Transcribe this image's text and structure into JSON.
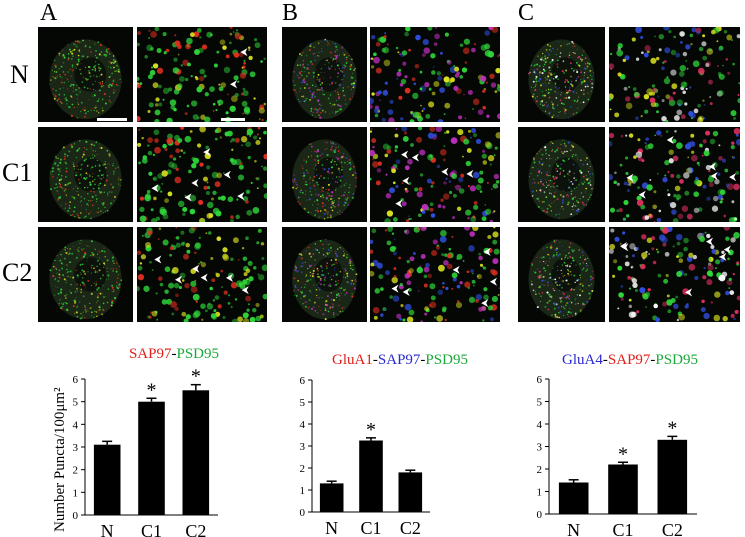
{
  "figure": {
    "panel_letters": [
      "A",
      "B",
      "C"
    ],
    "row_labels": [
      "N",
      "C1",
      "C2"
    ],
    "channel_colors": {
      "SAP97": "#e0201a",
      "PSD95": "#1aa83a",
      "GluA1": "#e0201a",
      "GluA4": "#2a2ad0",
      "dash": "#000000"
    }
  },
  "chart_data": [
    {
      "type": "bar",
      "title_parts": [
        {
          "text": "SAP97",
          "color": "red"
        },
        {
          "text": "-",
          "color": "dash"
        },
        {
          "text": "PSD95",
          "color": "green"
        }
      ],
      "ylabel": "Number Puncta/100μm²",
      "categories": [
        "N",
        "C1",
        "C2"
      ],
      "values": [
        3.1,
        5.0,
        5.5
      ],
      "errors": [
        0.15,
        0.15,
        0.25
      ],
      "significant": [
        false,
        true,
        true
      ],
      "ylim": [
        0,
        6
      ],
      "yticks": [
        "0",
        "1",
        "2",
        "3",
        "4",
        "5",
        "6"
      ],
      "star": "*"
    },
    {
      "type": "bar",
      "title_parts": [
        {
          "text": "GluA1",
          "color": "red"
        },
        {
          "text": "-",
          "color": "dash"
        },
        {
          "text": "SAP97",
          "color": "blue"
        },
        {
          "text": "-",
          "color": "dash"
        },
        {
          "text": "PSD95",
          "color": "green"
        }
      ],
      "ylabel": "",
      "categories": [
        "N",
        "C1",
        "C2"
      ],
      "values": [
        1.3,
        3.25,
        1.8
      ],
      "errors": [
        0.1,
        0.12,
        0.1
      ],
      "significant": [
        false,
        true,
        false
      ],
      "ylim": [
        0,
        6
      ],
      "yticks": [
        "0",
        "1",
        "2",
        "3",
        "4",
        "5",
        "6"
      ],
      "star": "*"
    },
    {
      "type": "bar",
      "title_parts": [
        {
          "text": "GluA4",
          "color": "blue"
        },
        {
          "text": "-",
          "color": "dash"
        },
        {
          "text": "SAP97",
          "color": "red"
        },
        {
          "text": "-",
          "color": "dash"
        },
        {
          "text": "PSD95",
          "color": "green"
        }
      ],
      "ylabel": "",
      "categories": [
        "N",
        "C1",
        "C2"
      ],
      "values": [
        1.4,
        2.2,
        3.3
      ],
      "errors": [
        0.12,
        0.1,
        0.15
      ],
      "significant": [
        false,
        true,
        true
      ],
      "ylim": [
        0,
        6
      ],
      "yticks": [
        "0",
        "1",
        "2",
        "3",
        "4",
        "5",
        "6"
      ],
      "star": "*"
    }
  ]
}
